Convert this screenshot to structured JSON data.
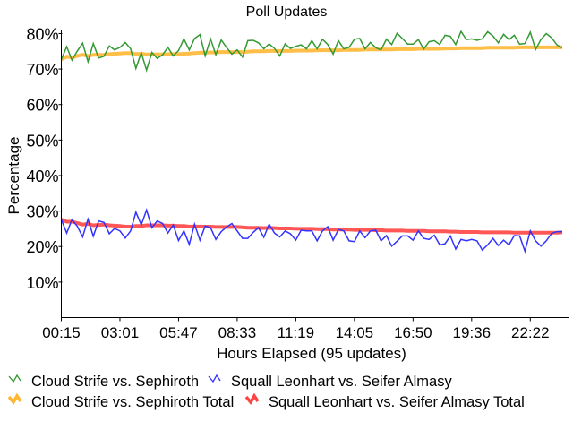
{
  "chart_data": {
    "type": "line",
    "title": "Poll Updates",
    "xlabel": "Hours Elapsed (95 updates)",
    "ylabel": "Percentage",
    "ylim": [
      0,
      81.3
    ],
    "yticks": [
      10,
      20,
      30,
      40,
      50,
      60,
      70,
      80
    ],
    "ytick_labels": [
      "10%",
      "20%",
      "30%",
      "40%",
      "50%",
      "60%",
      "70%",
      "80%"
    ],
    "xtick_labels": [
      "00:15",
      "03:01",
      "05:47",
      "08:33",
      "11:19",
      "14:05",
      "16:50",
      "19:36",
      "22:22"
    ],
    "xtick_indices": [
      0,
      11,
      22,
      33,
      44,
      55,
      66,
      77,
      88
    ],
    "n_points": 95,
    "grid": false,
    "legend_position": "bottom",
    "series": [
      {
        "name": "Cloud Strife vs. Sephiroth",
        "color": "#339933",
        "style": "thin",
        "values": [
          72.7,
          76.3,
          72.5,
          75.1,
          77.3,
          72.1,
          77.2,
          73.1,
          73.6,
          76.5,
          75.4,
          76.1,
          77.5,
          75.7,
          70.2,
          74.6,
          69.7,
          74.7,
          73.0,
          74.0,
          76.1,
          73.7,
          75.2,
          78.5,
          75.4,
          78.6,
          79.7,
          73.7,
          78.5,
          74.0,
          78.2,
          76.1,
          74.2,
          75.4,
          73.4,
          78.0,
          78.1,
          77.4,
          75.7,
          77.1,
          75.8,
          73.7,
          77.1,
          75.8,
          76.4,
          76.8,
          75.7,
          78.0,
          75.7,
          78.4,
          76.9,
          74.2,
          78.0,
          75.7,
          76.1,
          78.4,
          78.6,
          75.7,
          77.5,
          76.0,
          75.4,
          78.4,
          76.9,
          80.1,
          78.6,
          77.0,
          77.0,
          78.3,
          75.6,
          77.7,
          78.0,
          76.9,
          79.5,
          79.2,
          76.9,
          80.6,
          78.3,
          78.5,
          78.1,
          78.5,
          80.5,
          79.3,
          77.4,
          79.8,
          78.3,
          79.5,
          77.0,
          77.2,
          80.4,
          75.5,
          78.3,
          80.0,
          78.8,
          76.8,
          76.0
        ]
      },
      {
        "name": "Squall Leonhart vs. Seifer Almasy",
        "color": "#3333ff",
        "style": "thin",
        "values": [
          27.6,
          23.8,
          27.6,
          25.7,
          22.7,
          27.7,
          22.9,
          27.2,
          26.8,
          23.6,
          25.1,
          24.4,
          22.4,
          24.4,
          29.7,
          26.1,
          30.3,
          25.3,
          27.2,
          26.5,
          23.8,
          26.1,
          21.7,
          24.4,
          20.6,
          26.3,
          21.8,
          25.8,
          25.3,
          22.0,
          24.2,
          25.5,
          26.5,
          24.4,
          22.3,
          22.3,
          24.0,
          25.3,
          22.6,
          26.3,
          23.8,
          22.7,
          24.4,
          23.6,
          21.8,
          24.6,
          24.4,
          24.4,
          21.6,
          24.4,
          25.6,
          21.8,
          24.8,
          24.4,
          21.6,
          21.4,
          24.4,
          22.5,
          24.4,
          24.6,
          21.6,
          23.1,
          20.1,
          21.5,
          23.0,
          23.0,
          21.8,
          24.4,
          22.3,
          22.0,
          23.2,
          20.5,
          20.8,
          23.0,
          19.3,
          22.0,
          21.6,
          22.0,
          21.6,
          19.0,
          20.5,
          22.3,
          20.3,
          21.8,
          20.5,
          23.1,
          23.0,
          18.7,
          24.4,
          21.6,
          20.1,
          21.6,
          23.7,
          24.2,
          24.2
        ]
      },
      {
        "name": "Cloud Strife vs. Sephiroth Total",
        "color": "#ffb733",
        "style": "thick",
        "values": [
          72.7,
          73.5,
          73.2,
          73.7,
          74.0,
          73.7,
          74.0,
          74.0,
          74.0,
          74.2,
          74.3,
          74.4,
          74.5,
          74.5,
          74.2,
          74.3,
          74.1,
          74.1,
          74.1,
          74.1,
          74.2,
          74.2,
          74.2,
          74.3,
          74.4,
          74.5,
          74.6,
          74.6,
          74.7,
          74.7,
          74.8,
          74.8,
          74.8,
          74.8,
          74.8,
          74.9,
          75.0,
          75.0,
          75.0,
          75.1,
          75.1,
          75.1,
          75.1,
          75.1,
          75.2,
          75.2,
          75.2,
          75.2,
          75.3,
          75.3,
          75.3,
          75.3,
          75.3,
          75.4,
          75.4,
          75.4,
          75.4,
          75.5,
          75.5,
          75.5,
          75.5,
          75.5,
          75.5,
          75.6,
          75.6,
          75.6,
          75.6,
          75.7,
          75.7,
          75.7,
          75.7,
          75.7,
          75.8,
          75.8,
          75.8,
          75.9,
          75.9,
          75.9,
          75.9,
          75.9,
          76.0,
          76.0,
          76.0,
          76.0,
          76.0,
          76.0,
          76.1,
          76.1,
          76.1,
          76.1,
          76.1,
          76.1,
          76.1,
          76.1,
          76.1
        ]
      },
      {
        "name": "Squall Leonhart vs. Seifer Almasy Total",
        "color": "#ff4444",
        "style": "thick",
        "values": [
          27.6,
          27.0,
          27.0,
          26.6,
          26.2,
          26.4,
          26.0,
          26.1,
          26.2,
          26.0,
          25.9,
          25.8,
          25.6,
          25.6,
          25.8,
          25.8,
          26.0,
          26.0,
          26.0,
          26.0,
          25.9,
          25.9,
          25.8,
          25.8,
          25.6,
          25.7,
          25.6,
          25.6,
          25.6,
          25.5,
          25.5,
          25.5,
          25.5,
          25.5,
          25.4,
          25.3,
          25.3,
          25.3,
          25.2,
          25.3,
          25.2,
          25.1,
          25.1,
          25.1,
          25.0,
          25.0,
          25.0,
          25.0,
          24.9,
          24.9,
          24.9,
          24.8,
          24.8,
          24.8,
          24.8,
          24.7,
          24.7,
          24.7,
          24.7,
          24.6,
          24.6,
          24.5,
          24.5,
          24.5,
          24.5,
          24.4,
          24.4,
          24.4,
          24.4,
          24.3,
          24.3,
          24.3,
          24.3,
          24.2,
          24.2,
          24.1,
          24.1,
          24.1,
          24.1,
          24.0,
          24.0,
          24.0,
          24.0,
          24.0,
          24.0,
          23.9,
          23.9,
          23.9,
          23.9,
          23.9,
          23.9,
          23.9,
          23.9,
          23.9,
          24.0
        ]
      }
    ]
  }
}
